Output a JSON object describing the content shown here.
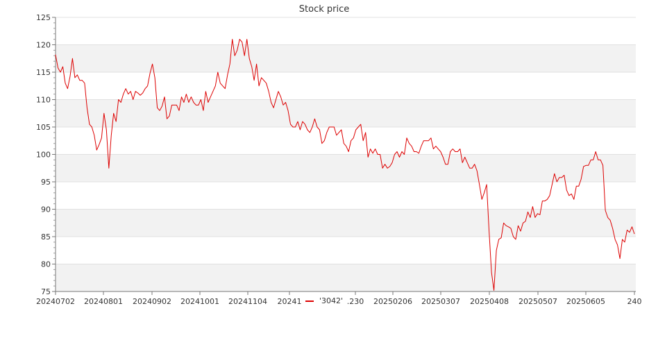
{
  "chart_data": {
    "type": "line",
    "title": "Stock price",
    "xlabel": "",
    "ylabel": "",
    "ylim": [
      75,
      125
    ],
    "y_ticks": [
      75,
      80,
      85,
      90,
      95,
      100,
      105,
      110,
      115,
      120,
      125
    ],
    "x_tick_labels": [
      "20240702",
      "20240801",
      "20240902",
      "20241001",
      "20241104",
      "20241",
      ".230",
      "20250206",
      "20250307",
      "20250408",
      "20250507",
      "20250605",
      "240"
    ],
    "grid": "horizontal",
    "band_colors": [
      "#f2f2f2",
      "#ffffff"
    ],
    "line_color": "#dd0000",
    "legend": {
      "placement": "bottom-center",
      "label": "'3042'"
    },
    "series": [
      {
        "name": "'3042'",
        "values": [
          118.2,
          115.8,
          115.0,
          116.0,
          113.0,
          112.0,
          114.2,
          117.5,
          114.0,
          114.5,
          113.5,
          113.5,
          113.0,
          108.5,
          105.5,
          105.0,
          103.5,
          100.8,
          101.8,
          103.0,
          107.5,
          104.5,
          97.5,
          103.5,
          107.5,
          106.0,
          110.0,
          109.5,
          111.0,
          112.0,
          111.0,
          111.5,
          110.0,
          111.5,
          111.2,
          110.8,
          111.2,
          112.0,
          112.5,
          114.8,
          116.5,
          114.0,
          108.5,
          108.0,
          108.8,
          110.5,
          106.5,
          107.0,
          109.0,
          109.0,
          109.0,
          108.0,
          110.5,
          109.5,
          111.0,
          109.5,
          110.5,
          109.5,
          109.0,
          109.0,
          110.0,
          108.0,
          111.5,
          109.5,
          110.5,
          111.5,
          112.5,
          115.0,
          113.0,
          112.5,
          112.0,
          114.5,
          116.5,
          121.0,
          118.0,
          119.0,
          121.0,
          120.5,
          118.0,
          121.0,
          117.5,
          116.0,
          113.5,
          116.5,
          112.5,
          114.0,
          113.5,
          113.0,
          111.5,
          109.5,
          108.5,
          110.0,
          111.5,
          110.5,
          109.0,
          109.5,
          108.0,
          105.5,
          105.0,
          105.0,
          106.0,
          104.5,
          106.0,
          105.5,
          104.5,
          104.0,
          105.0,
          106.5,
          105.0,
          104.5,
          102.0,
          102.5,
          104.0,
          105.0,
          105.0,
          105.0,
          103.5,
          104.0,
          104.5,
          102.0,
          101.5,
          100.5,
          102.5,
          103.0,
          104.5,
          105.0,
          105.5,
          102.5,
          104.0,
          99.5,
          101.0,
          100.2,
          101.0,
          100.0,
          100.0,
          97.5,
          98.2,
          97.5,
          97.8,
          98.5,
          100.0,
          100.5,
          99.5,
          100.5,
          100.0,
          103.0,
          102.0,
          101.5,
          100.5,
          100.5,
          100.2,
          101.5,
          102.5,
          102.5,
          102.5,
          103.0,
          101.0,
          101.5,
          101.0,
          100.5,
          99.5,
          98.2,
          98.2,
          100.5,
          101.0,
          100.5,
          100.5,
          101.0,
          98.5,
          99.5,
          98.5,
          97.5,
          97.5,
          98.2,
          97.0,
          94.5,
          91.8,
          93.0,
          94.5,
          86.0,
          78.5,
          75.2,
          82.5,
          84.5,
          84.8,
          87.5,
          87.0,
          86.8,
          86.5,
          85.0,
          84.5,
          87.0,
          86.0,
          87.5,
          87.8,
          89.5,
          88.5,
          90.5,
          88.5,
          89.2,
          89.0,
          91.5,
          91.5,
          91.8,
          92.5,
          94.5,
          96.5,
          95.0,
          95.8,
          95.8,
          96.2,
          93.5,
          92.5,
          92.8,
          91.8,
          94.2,
          94.2,
          95.5,
          97.8,
          98.0,
          98.0,
          99.0,
          99.0,
          100.5,
          99.0,
          99.0,
          98.0,
          89.8,
          88.5,
          88.0,
          86.5,
          84.5,
          83.5,
          81.0,
          84.5,
          84.0,
          86.2,
          85.8,
          86.8,
          85.5
        ]
      }
    ]
  }
}
